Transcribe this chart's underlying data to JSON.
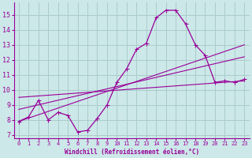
{
  "title": "",
  "xlabel": "Windchill (Refroidissement éolien,°C)",
  "bg_color": "#cce8e8",
  "grid_color": "#aacccc",
  "line_color": "#990099",
  "xlim": [
    -0.5,
    23.5
  ],
  "ylim": [
    6.8,
    15.8
  ],
  "xticks": [
    0,
    1,
    2,
    3,
    4,
    5,
    6,
    7,
    8,
    9,
    10,
    11,
    12,
    13,
    14,
    15,
    16,
    17,
    18,
    19,
    20,
    21,
    22,
    23
  ],
  "yticks": [
    7,
    8,
    9,
    10,
    11,
    12,
    13,
    14,
    15
  ],
  "line1_x": [
    0,
    1,
    2,
    3,
    4,
    5,
    6,
    7,
    8,
    9,
    10,
    11,
    12,
    13,
    14,
    15,
    16,
    17,
    18,
    19,
    20,
    21,
    22,
    23
  ],
  "line1_y": [
    7.9,
    8.2,
    9.3,
    8.0,
    8.5,
    8.3,
    7.2,
    7.3,
    8.1,
    9.0,
    10.5,
    11.4,
    12.7,
    13.1,
    14.8,
    15.3,
    15.3,
    14.4,
    13.0,
    12.3,
    10.5,
    10.6,
    10.5,
    10.7
  ],
  "line2_x": [
    0,
    23
  ],
  "line2_y": [
    7.9,
    13.0
  ],
  "line3_x": [
    0,
    23
  ],
  "line3_y": [
    8.7,
    12.2
  ],
  "line4_x": [
    0,
    23
  ],
  "line4_y": [
    9.5,
    10.6
  ]
}
